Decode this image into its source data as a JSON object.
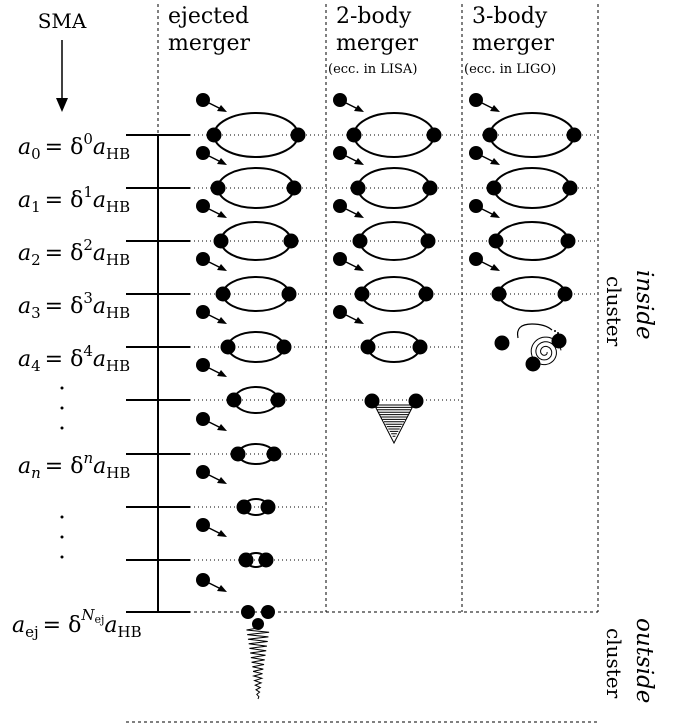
{
  "sma_label": "SMA",
  "columns": [
    {
      "line1": "ejected",
      "line2": "merger",
      "note": ""
    },
    {
      "line1": "2-body",
      "line2": "merger",
      "note": "(ecc. in LISA)"
    },
    {
      "line1": "3-body",
      "line2": "merger",
      "note": "(ecc. in LIGO)"
    }
  ],
  "levels": [
    {
      "var": "a",
      "sub": "0",
      "rhs": "= δ",
      "sup": "0",
      "tail": "a",
      "tailsub": "HB"
    },
    {
      "var": "a",
      "sub": "1",
      "rhs": "= δ",
      "sup": "1",
      "tail": "a",
      "tailsub": "HB"
    },
    {
      "var": "a",
      "sub": "2",
      "rhs": "= δ",
      "sup": "2",
      "tail": "a",
      "tailsub": "HB"
    },
    {
      "var": "a",
      "sub": "3",
      "rhs": "= δ",
      "sup": "3",
      "tail": "a",
      "tailsub": "HB"
    },
    {
      "var": "a",
      "sub": "4",
      "rhs": "= δ",
      "sup": "4",
      "tail": "a",
      "tailsub": "HB"
    },
    {
      "var": "a",
      "sub": "n",
      "rhs": "= δ",
      "sup": "n",
      "tail": "a",
      "tailsub": "HB"
    },
    {
      "var": "a",
      "sub": "ej",
      "rhs": "= δ",
      "sup": "N",
      "supsub": "ej",
      "tail": "a",
      "tailsub": "HB"
    }
  ],
  "side_labels": {
    "inside_word": "inside",
    "inside_sub": "cluster",
    "outside_word": "outside",
    "outside_sub": "cluster"
  }
}
